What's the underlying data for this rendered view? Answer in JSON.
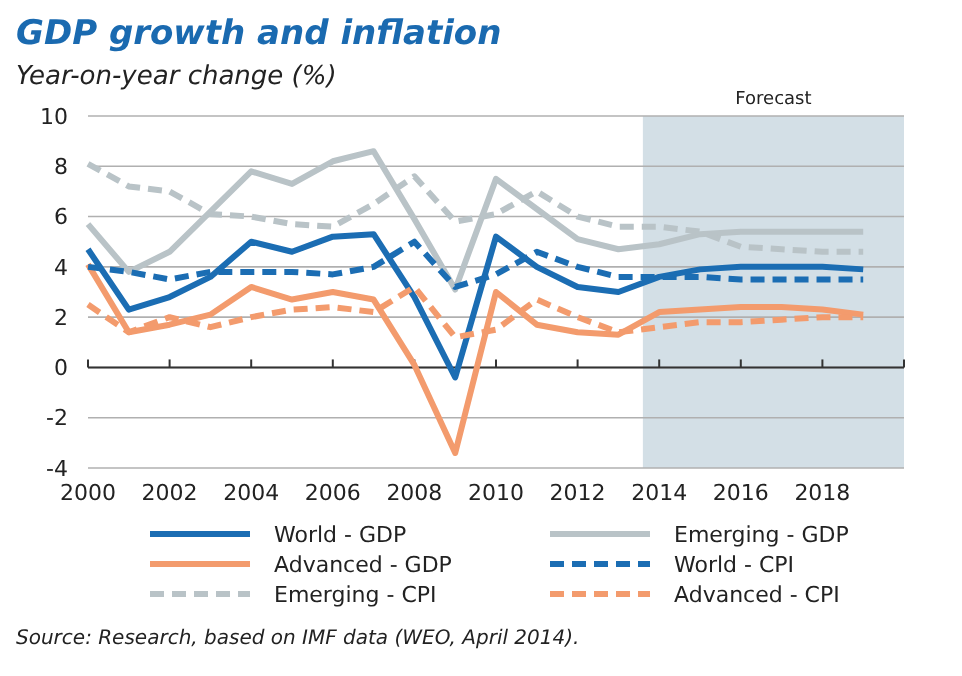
{
  "chart_data": {
    "type": "line",
    "title": "GDP growth and inflation",
    "subtitle": "Year-on-year change (%)",
    "x": [
      2000,
      2001,
      2002,
      2003,
      2004,
      2005,
      2006,
      2007,
      2008,
      2009,
      2010,
      2011,
      2012,
      2013,
      2014,
      2015,
      2016,
      2017,
      2018,
      2019
    ],
    "series": [
      {
        "name": "World - GDP",
        "color": "#1b6db3",
        "line_style": "solid",
        "values": [
          4.7,
          2.3,
          2.8,
          3.6,
          5.0,
          4.6,
          5.2,
          5.3,
          2.8,
          -0.4,
          5.2,
          4.0,
          3.2,
          3.0,
          3.6,
          3.9,
          4.0,
          4.0,
          4.0,
          3.9
        ]
      },
      {
        "name": "Emerging - GDP",
        "color": "#b9c3c7",
        "line_style": "solid",
        "values": [
          5.7,
          3.8,
          4.6,
          6.2,
          7.8,
          7.3,
          8.2,
          8.6,
          5.9,
          3.1,
          7.5,
          6.3,
          5.1,
          4.7,
          4.9,
          5.3,
          5.4,
          5.4,
          5.4,
          5.4
        ]
      },
      {
        "name": "Advanced - GDP",
        "color": "#f39b6d",
        "line_style": "solid",
        "values": [
          4.1,
          1.4,
          1.7,
          2.1,
          3.2,
          2.7,
          3.0,
          2.7,
          0.1,
          -3.4,
          3.0,
          1.7,
          1.4,
          1.3,
          2.2,
          2.3,
          2.4,
          2.4,
          2.3,
          2.1
        ]
      },
      {
        "name": "World - CPI",
        "color": "#1b6db3",
        "line_style": "dashed",
        "values": [
          4.0,
          3.8,
          3.5,
          3.8,
          3.8,
          3.8,
          3.7,
          4.0,
          5.0,
          3.2,
          3.7,
          4.6,
          4.0,
          3.6,
          3.6,
          3.6,
          3.5,
          3.5,
          3.5,
          3.5
        ]
      },
      {
        "name": "Emerging - CPI",
        "color": "#b9c3c7",
        "line_style": "dashed",
        "values": [
          8.1,
          7.2,
          7.0,
          6.1,
          6.0,
          5.7,
          5.6,
          6.5,
          7.6,
          5.8,
          6.1,
          7.0,
          6.0,
          5.6,
          5.6,
          5.4,
          4.8,
          4.7,
          4.6,
          4.6
        ]
      },
      {
        "name": "Advanced - CPI",
        "color": "#f39b6d",
        "line_style": "dashed",
        "values": [
          2.5,
          1.4,
          2.0,
          1.6,
          2.0,
          2.3,
          2.4,
          2.2,
          3.2,
          1.2,
          1.5,
          2.7,
          2.0,
          1.4,
          1.6,
          1.8,
          1.8,
          1.9,
          2.0,
          2.0
        ]
      }
    ],
    "xlim": [
      2000,
      2020
    ],
    "xticks": [
      2000,
      2002,
      2004,
      2006,
      2008,
      2010,
      2012,
      2014,
      2016,
      2018
    ],
    "ylim": [
      -4,
      10
    ],
    "yticks": [
      -4,
      -2,
      0,
      2,
      4,
      6,
      8,
      10
    ],
    "grid": "y",
    "legend": "bottom",
    "bands": [
      {
        "axis": "x",
        "from": 2013.6,
        "to": 2020,
        "label": "Forecast",
        "color": "#d3dfe6"
      }
    ],
    "annotations": [
      "Source: Research, based on IMF data (WEO, April 2014)."
    ]
  }
}
